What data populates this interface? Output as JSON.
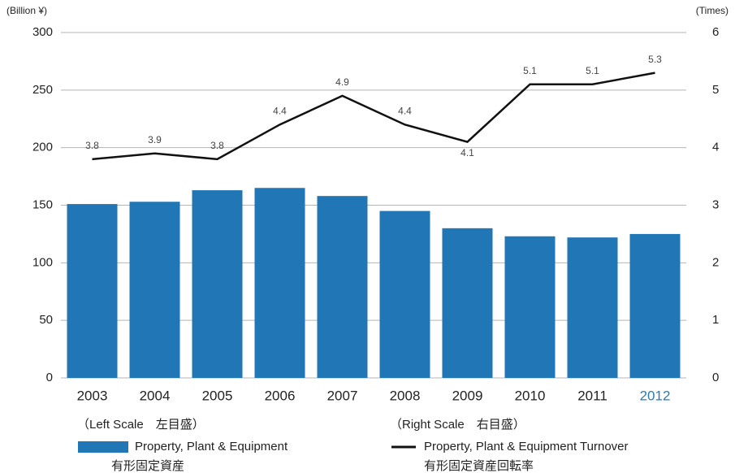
{
  "chart_data": {
    "type": "bar_line",
    "y_unit": "(Billion ¥)",
    "y2_unit": "(Times)",
    "categories": [
      "2003",
      "2004",
      "2005",
      "2006",
      "2007",
      "2008",
      "2009",
      "2010",
      "2011",
      "2012"
    ],
    "highlight_category": "2012",
    "highlight_color": "#2a7ab8",
    "series": [
      {
        "name": "Property, Plant & Equipment",
        "name_ja": "有形固定資産",
        "scale_label": "（Left Scale　左目盛）",
        "type": "bar",
        "color": "#2176b5",
        "values": [
          151,
          153,
          163,
          165,
          158,
          145,
          130,
          123,
          122,
          125
        ]
      },
      {
        "name": "Property, Plant & Equipment Turnover",
        "name_ja": "有形固定資産回転率",
        "scale_label": "（Right Scale　右目盛）",
        "type": "line",
        "color": "#111111",
        "axis": "y2",
        "values": [
          3.8,
          3.9,
          3.8,
          4.4,
          4.9,
          4.4,
          4.1,
          5.1,
          5.1,
          5.3
        ],
        "value_label_positions": [
          "above",
          "above",
          "above",
          "above",
          "above",
          "above",
          "below",
          "above",
          "above",
          "above"
        ]
      }
    ],
    "ylim": [
      0,
      300
    ],
    "yticks": [
      0,
      50,
      100,
      150,
      200,
      250,
      300
    ],
    "y2lim": [
      0,
      6
    ],
    "y2ticks": [
      0,
      1,
      2,
      3,
      4,
      5,
      6
    ],
    "grid": true
  }
}
